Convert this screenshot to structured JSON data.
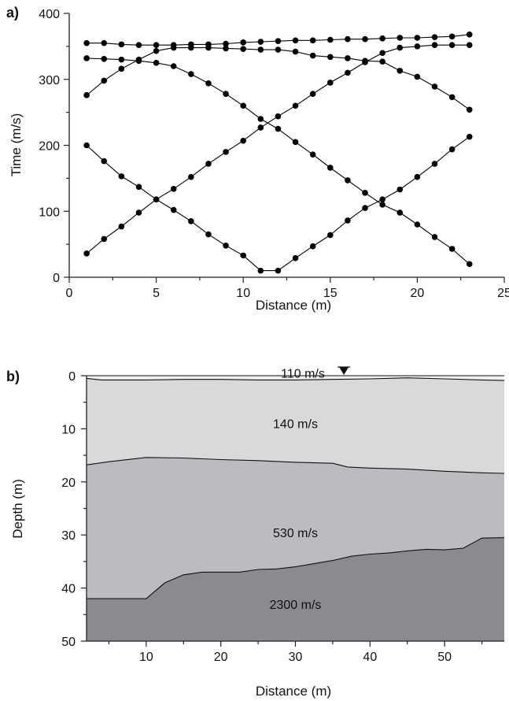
{
  "chart_data": [
    {
      "panel_label": "a)",
      "type": "scatter",
      "xlabel": "Distance (m)",
      "ylabel": "Time (m/s)",
      "xlim": [
        0,
        25
      ],
      "ylim": [
        0,
        400
      ],
      "xticks": [
        0,
        5,
        10,
        15,
        20,
        25
      ],
      "yticks": [
        0,
        100,
        200,
        300,
        400
      ],
      "x": [
        1,
        2,
        3,
        4,
        5,
        6,
        7,
        8,
        9,
        10,
        11,
        12,
        13,
        14,
        15,
        16,
        17,
        18,
        19,
        20,
        21,
        22,
        23
      ],
      "series": [
        {
          "values": [
            36,
            58,
            77,
            98,
            118,
            134,
            152,
            172,
            190,
            207,
            227,
            244,
            260,
            278,
            295,
            310,
            326,
            340,
            348,
            350,
            352,
            352,
            352
          ]
        },
        {
          "values": [
            276,
            298,
            316,
            330,
            343,
            348,
            348,
            348,
            347,
            346,
            345,
            345,
            342,
            336,
            334,
            332,
            328,
            327,
            313,
            304,
            289,
            273,
            254
          ]
        },
        {
          "values": [
            332,
            331,
            330,
            328,
            325,
            320,
            308,
            294,
            278,
            260,
            240,
            225,
            205,
            186,
            166,
            147,
            128,
            110,
            98,
            80,
            61,
            43,
            20
          ]
        },
        {
          "values": [
            200,
            176,
            153,
            137,
            118,
            102,
            85,
            65,
            48,
            33,
            10,
            10,
            29,
            47,
            64,
            86,
            105,
            118,
            133,
            152,
            172,
            194,
            213
          ]
        },
        {
          "values": [
            355,
            355,
            353,
            352,
            352,
            352,
            353,
            353,
            354,
            356,
            357,
            358,
            359,
            359,
            360,
            361,
            361,
            362,
            363,
            363,
            364,
            365,
            368
          ]
        }
      ]
    },
    {
      "panel_label": "b)",
      "type": "area",
      "xlabel": "Distance (m)",
      "ylabel": "Depth (m)",
      "xlim": [
        2,
        58
      ],
      "ylim": [
        0,
        50
      ],
      "xticks": [
        10,
        20,
        30,
        40,
        50
      ],
      "yticks": [
        0,
        10,
        20,
        30,
        40,
        50
      ],
      "surface_depth": 0,
      "water_table_marker_x": 36.5,
      "layers": [
        {
          "name": "110 m/s",
          "velocity": 110,
          "color": "#f1f1f1",
          "label_pos": [
            31,
            -0.5
          ],
          "bottom": {
            "x": [
              2,
              4,
              10,
              15,
              20,
              25,
              30,
              35,
              40,
              45,
              50,
              55,
              58
            ],
            "depth": [
              0.5,
              0.8,
              0.8,
              0.7,
              0.7,
              0.8,
              0.8,
              0.7,
              0.6,
              0.4,
              0.6,
              0.8,
              0.9
            ]
          }
        },
        {
          "name": "140 m/s",
          "velocity": 140,
          "color": "#d9d9db",
          "label_pos": [
            30,
            9
          ],
          "bottom": {
            "x": [
              2,
              5,
              10,
              15,
              20,
              25,
              30,
              35,
              37,
              40,
              45,
              50,
              55,
              58
            ],
            "depth": [
              16.8,
              16.2,
              15.4,
              15.5,
              15.8,
              16.0,
              16.3,
              16.5,
              17.2,
              17.4,
              17.6,
              18.0,
              18.3,
              18.4
            ]
          }
        },
        {
          "name": "530 m/s",
          "velocity": 530,
          "color": "#bbbcbf",
          "label_pos": [
            30,
            29.5
          ],
          "bottom": {
            "x": [
              2,
              10,
              12.5,
              15,
              17.5,
              20,
              22.5,
              25,
              27.5,
              30,
              32.5,
              35,
              37.5,
              40,
              42.5,
              45,
              47.5,
              50,
              52.5,
              55,
              58
            ],
            "depth": [
              42,
              42,
              39,
              37.5,
              37,
              37,
              37,
              36.5,
              36.4,
              36,
              35.4,
              34.8,
              34,
              33.6,
              33.4,
              33.0,
              32.7,
              32.8,
              32.5,
              30.6,
              30.5
            ]
          }
        },
        {
          "name": "2300 m/s",
          "velocity": 2300,
          "color": "#8a8b8e",
          "label_pos": [
            30,
            43
          ]
        }
      ]
    }
  ]
}
